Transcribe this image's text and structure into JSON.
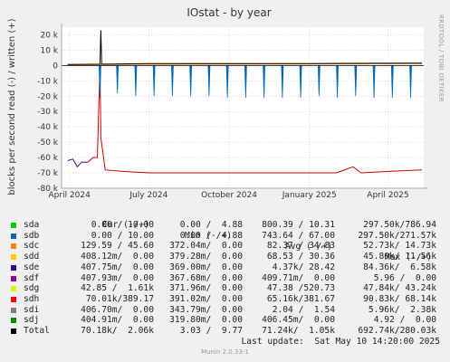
{
  "chart_data": {
    "type": "line",
    "title": "IOstat - by year",
    "ylabel": "blocks per second read (-) / written (+)",
    "ylim": [
      -80000,
      25000
    ],
    "yticks": [
      {
        "value": 20000,
        "label": "20 k"
      },
      {
        "value": 10000,
        "label": "10 k"
      },
      {
        "value": 0,
        "label": "0"
      },
      {
        "value": -10000,
        "label": "-10 k"
      },
      {
        "value": -20000,
        "label": "-20 k"
      },
      {
        "value": -30000,
        "label": "-30 k"
      },
      {
        "value": -40000,
        "label": "-40 k"
      },
      {
        "value": -50000,
        "label": "-50 k"
      },
      {
        "value": -60000,
        "label": "-60 k"
      },
      {
        "value": -70000,
        "label": "-70 k"
      },
      {
        "value": -80000,
        "label": "-80 k"
      }
    ],
    "xlim": [
      "2024-03-23",
      "2025-05-12"
    ],
    "xticks": [
      {
        "date": "2024-04-01",
        "label": "April 2024"
      },
      {
        "date": "2024-07-01",
        "label": "July 2024"
      },
      {
        "date": "2024-10-01",
        "label": "October 2024"
      },
      {
        "date": "2025-01-01",
        "label": "January 2025"
      },
      {
        "date": "2025-04-01",
        "label": "April 2025"
      }
    ],
    "grid": true,
    "series": [
      {
        "name": "sdh",
        "color": "#cc0000",
        "read_points": [
          [
            "2024-04-22",
            -63000
          ],
          [
            "2024-04-28",
            -60000
          ],
          [
            "2024-05-03",
            -60000
          ],
          [
            "2024-05-06",
            -200
          ],
          [
            "2024-05-07",
            -47000
          ],
          [
            "2024-05-12",
            -68000
          ],
          [
            "2024-06-01",
            -69000
          ],
          [
            "2024-07-01",
            -70000
          ],
          [
            "2024-08-01",
            -70000
          ],
          [
            "2024-09-01",
            -70000
          ],
          [
            "2024-10-01",
            -70000
          ],
          [
            "2024-11-01",
            -70000
          ],
          [
            "2024-12-01",
            -70000
          ],
          [
            "2025-01-01",
            -70000
          ],
          [
            "2025-02-01",
            -70000
          ],
          [
            "2025-02-20",
            -66000
          ],
          [
            "2025-03-01",
            -70000
          ],
          [
            "2025-04-01",
            -69000
          ],
          [
            "2025-05-10",
            -68000
          ]
        ]
      },
      {
        "name": "sde",
        "color": "#330099",
        "read_points": [
          [
            "2024-03-30",
            -62000
          ],
          [
            "2024-04-05",
            -61000
          ],
          [
            "2024-04-10",
            -66000
          ],
          [
            "2024-04-15",
            -63000
          ],
          [
            "2024-04-22",
            -63000
          ]
        ]
      },
      {
        "name": "sdd",
        "color": "#ffcc00",
        "write_points": [
          [
            "2024-05-07",
            22000
          ]
        ]
      },
      {
        "name": "sdc",
        "color": "#ff7f00",
        "write_points": [
          [
            "2024-03-30",
            300
          ],
          [
            "2024-05-06",
            500
          ],
          [
            "2024-07-01",
            800
          ],
          [
            "2024-10-01",
            900
          ],
          [
            "2025-01-01",
            1000
          ],
          [
            "2025-05-10",
            1200
          ]
        ]
      },
      {
        "name": "sdb",
        "color": "#0066b3",
        "read_spikes": [
          [
            "2024-05-06",
            -21000
          ],
          [
            "2024-05-26",
            -18000
          ],
          [
            "2024-06-16",
            -20000
          ],
          [
            "2024-07-07",
            -20000
          ],
          [
            "2024-07-28",
            -20000
          ],
          [
            "2024-08-18",
            -20000
          ],
          [
            "2024-09-08",
            -20000
          ],
          [
            "2024-09-29",
            -21000
          ],
          [
            "2024-10-20",
            -21000
          ],
          [
            "2024-11-10",
            -21000
          ],
          [
            "2024-12-01",
            -21000
          ],
          [
            "2024-12-22",
            -21000
          ],
          [
            "2025-01-12",
            -20000
          ],
          [
            "2025-02-02",
            -21000
          ],
          [
            "2025-02-23",
            -20000
          ],
          [
            "2025-03-16",
            -21000
          ],
          [
            "2025-04-06",
            -21000
          ],
          [
            "2025-04-27",
            -21000
          ]
        ]
      },
      {
        "name": "Total",
        "color": "#000000",
        "write_points": [
          [
            "2024-03-30",
            700
          ],
          [
            "2024-05-06",
            900
          ],
          [
            "2024-05-07",
            23000
          ],
          [
            "2024-05-08",
            900
          ],
          [
            "2024-07-01",
            1200
          ],
          [
            "2024-10-01",
            1300
          ],
          [
            "2025-01-01",
            1300
          ],
          [
            "2025-05-10",
            1600
          ]
        ]
      }
    ]
  },
  "legend": {
    "headers": {
      "cur": "Cur (-/+)",
      "min": "Min (-/+)",
      "avg": "Avg (-/+)",
      "max": "Max (-/+)"
    },
    "rows": [
      {
        "name": "sda",
        "color": "#00cc00",
        "cur": "0.00 / 10.00",
        "min": "0.00 /  4.88",
        "avg": "800.39 / 10.31",
        "max": "297.50k/786.94"
      },
      {
        "name": "sdb",
        "color": "#0066b3",
        "cur": "0.00 / 10.00",
        "min": "0.00 /  4.88",
        "avg": "743.64 / 67.00",
        "max": "297.50k/271.57k"
      },
      {
        "name": "sdc",
        "color": "#ff7f00",
        "cur": "129.59 / 45.60",
        "min": "372.04m/  0.00",
        "avg": "82.37 / 34.83",
        "max": "52.73k/ 14.73k"
      },
      {
        "name": "sdd",
        "color": "#ffcc00",
        "cur": "408.12m/  0.00",
        "min": "379.28m/  0.00",
        "avg": "68.53 / 30.36",
        "max": "45.80k/ 11.56k"
      },
      {
        "name": "sde",
        "color": "#330099",
        "cur": "407.75m/  0.00",
        "min": "369.00m/  0.00",
        "avg": "4.37k/ 28.42",
        "max": "84.36k/  6.58k"
      },
      {
        "name": "sdf",
        "color": "#990099",
        "cur": "407.93m/  0.00",
        "min": "367.68m/  0.00",
        "avg": "409.71m/  0.00",
        "max": "5.96 /  0.00"
      },
      {
        "name": "sdg",
        "color": "#ccff00",
        "cur": "42.85 /  1.61k",
        "min": "371.96m/  0.00",
        "avg": "47.38 /520.73",
        "max": "47.84k/ 43.24k"
      },
      {
        "name": "sdh",
        "color": "#ff0000",
        "cur": "70.01k/389.17",
        "min": "391.02m/  0.00",
        "avg": "65.16k/381.67",
        "max": "90.83k/ 68.14k"
      },
      {
        "name": "sdi",
        "color": "#808080",
        "cur": "406.70m/  0.00",
        "min": "343.79m/  0.00",
        "avg": "2.04 /  1.54",
        "max": "5.96k/  2.38k"
      },
      {
        "name": "sdj",
        "color": "#008f00",
        "cur": "404.91m/  0.00",
        "min": "319.80m/  0.00",
        "avg": "406.45m/  0.00",
        "max": "4.92 /  0.00"
      },
      {
        "name": "Total",
        "color": "#000000",
        "cur": "70.18k/  2.06k",
        "min": "3.03 /  9.77",
        "avg": "71.24k/  1.05k",
        "max": "692.74k/280.03k"
      }
    ]
  },
  "last_update": "Last update:  Sat May 10 14:20:00 2025",
  "side_label": "RRDTOOL / TOBI OETIKER",
  "footer": "Munin 2.0.33-1"
}
